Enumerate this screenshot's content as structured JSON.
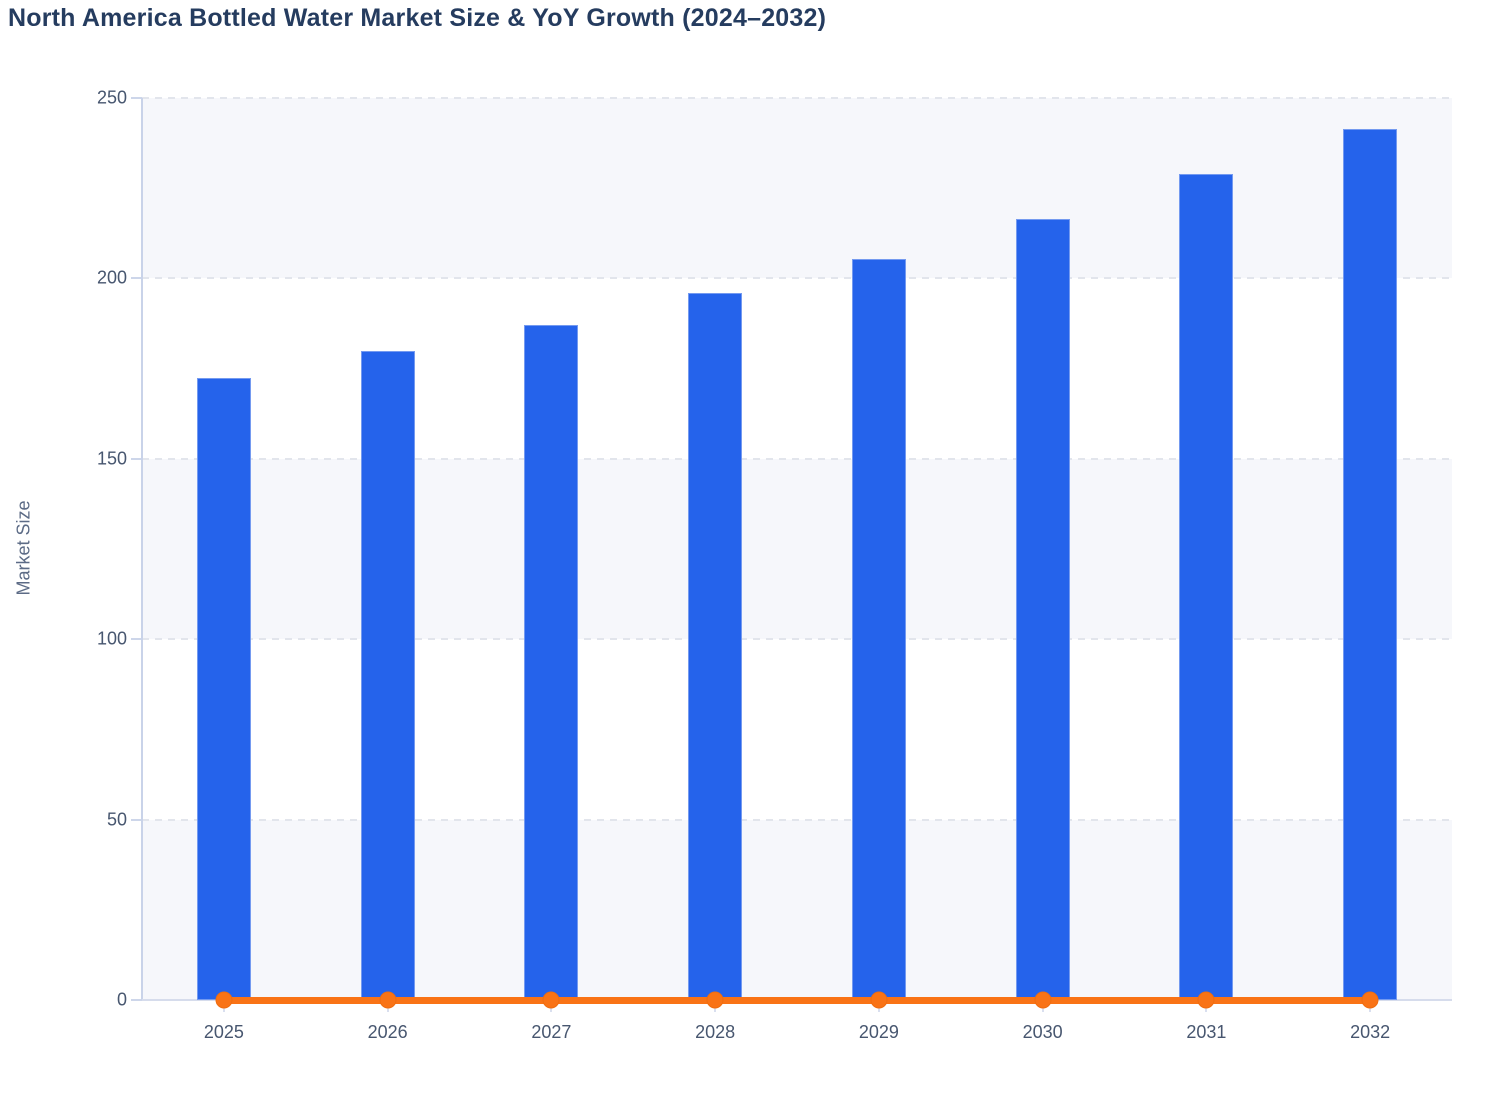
{
  "chart_data": {
    "type": "bar",
    "title": "North America Bottled Water Market Size & YoY Growth (2024–2032)",
    "ylabel": "Market Size",
    "xlabel": "",
    "categories": [
      "2025",
      "2026",
      "2027",
      "2028",
      "2029",
      "2030",
      "2031",
      "2032"
    ],
    "series": [
      {
        "name": "Market Size",
        "type": "bar",
        "color": "#2563eb",
        "values": [
          172.5,
          180,
          187,
          196,
          205.5,
          216.5,
          229,
          241.5
        ]
      },
      {
        "name": "YoY Growth",
        "type": "line",
        "color": "#f97316",
        "values": [
          0,
          0,
          0,
          0,
          0,
          0,
          0,
          0
        ],
        "note": "line with round markers rendered flat at 0 on the Market Size axis"
      }
    ],
    "ylim": [
      0,
      250
    ],
    "yticks": [
      0,
      50,
      100,
      150,
      200,
      250
    ],
    "grid": "horizontal dashed gridlines",
    "plot_bands": "alternating horizontal bands between gridlines",
    "legend": "none"
  },
  "colors": {
    "bar": "#2563eb",
    "line": "#f97316",
    "band": "#f6f7fb",
    "grid": "#e2e5ec",
    "axis": "#ccd5e9",
    "tick_text": "#47566f",
    "title_text": "#253c5f",
    "ylabel_text": "#5c6b86"
  }
}
